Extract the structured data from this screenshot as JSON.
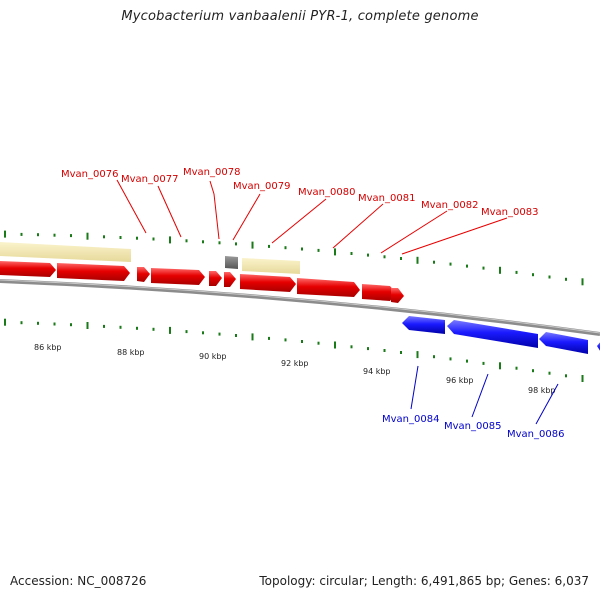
{
  "title": "Mycobacterium vanbaalenii PYR-1, complete genome",
  "footer": {
    "accession": "Accession: NC_008726",
    "topology": "Topology: circular; Length: 6,491,865 bp; Genes: 6,037"
  },
  "colors": {
    "forward_gene": "#e60000",
    "reverse_gene": "#1a1aff",
    "other_feature": "#f2e6a8",
    "rna_feature": "#808080",
    "backbone": "#8c8c8c",
    "tick": "#1a7a1a",
    "forward_label": "#d40000",
    "reverse_label": "#0000cc"
  },
  "forward_genes": [
    "Mvan_0076",
    "Mvan_0077",
    "Mvan_0078",
    "Mvan_0079",
    "Mvan_0080",
    "Mvan_0081",
    "Mvan_0082",
    "Mvan_0083"
  ],
  "reverse_genes": [
    "Mvan_0084",
    "Mvan_0085",
    "Mvan_0086"
  ],
  "kbp_ticks": [
    "86 kbp",
    "88 kbp",
    "90 kbp",
    "92 kbp",
    "94 kbp",
    "96 kbp",
    "98 kbp"
  ]
}
